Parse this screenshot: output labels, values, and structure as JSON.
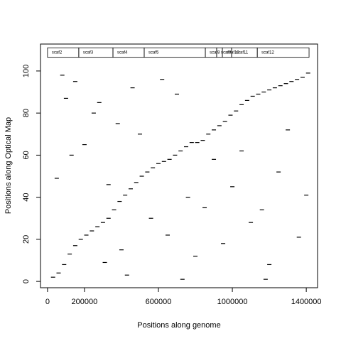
{
  "chart_data": {
    "type": "scatter",
    "x_label": "Positions along genome",
    "y_label": "Positions along Optical Map",
    "xlim": [
      -38000,
      1461000
    ],
    "ylim": [
      -3,
      112.8
    ],
    "xticks": [
      0,
      200000,
      600000,
      1000000,
      1400000
    ],
    "yticks": [
      0,
      20,
      40,
      60,
      80,
      100
    ],
    "color": "#000000",
    "scaffolds": [
      {
        "name": "scaf2",
        "start": 0,
        "end": 169000
      },
      {
        "name": "scaf3",
        "start": 169000,
        "end": 354000
      },
      {
        "name": "scaf4",
        "start": 354000,
        "end": 523000
      },
      {
        "name": "scaf5",
        "start": 523000,
        "end": 854000
      },
      {
        "name": "scaf8",
        "start": 854000,
        "end": 915000
      },
      {
        "name": "scaf9",
        "start": 915000,
        "end": 946000
      },
      {
        "name": "scaf10",
        "start": 946000,
        "end": 996000
      },
      {
        "name": "scaf11",
        "start": 996000,
        "end": 1135000
      },
      {
        "name": "scaf12",
        "start": 1135000,
        "end": 1415000
      }
    ],
    "x": [
      30000,
      60000,
      90000,
      120000,
      150000,
      180000,
      210000,
      240000,
      270000,
      300000,
      330000,
      360000,
      390000,
      420000,
      450000,
      480000,
      510000,
      540000,
      570000,
      600000,
      630000,
      660000,
      690000,
      720000,
      750000,
      780000,
      810000,
      840000,
      870000,
      900000,
      930000,
      960000,
      990000,
      1020000,
      1050000,
      1080000,
      1110000,
      1140000,
      1170000,
      1200000,
      1230000,
      1260000,
      1290000,
      1320000,
      1350000,
      1380000,
      1410000,
      80000,
      100000,
      150000,
      50000,
      130000,
      200000,
      250000,
      280000,
      310000,
      330000,
      380000,
      400000,
      430000,
      460000,
      500000,
      560000,
      620000,
      650000,
      700000,
      760000,
      800000,
      850000,
      900000,
      950000,
      1000000,
      1050000,
      1100000,
      1160000,
      1200000,
      1250000,
      1300000,
      1360000,
      1400000,
      730000,
      1180000
    ],
    "y": [
      2,
      4,
      8,
      13,
      17,
      20,
      22,
      24,
      26,
      28,
      30,
      34,
      38,
      41,
      44,
      47,
      50,
      52,
      54,
      56,
      57,
      58,
      60,
      62,
      64,
      66,
      66,
      67,
      70,
      72,
      74,
      76,
      79,
      81,
      84,
      86,
      88,
      89,
      90,
      91,
      92,
      93,
      94,
      95,
      96,
      97,
      99,
      98,
      87,
      95,
      49,
      60,
      65,
      80,
      85,
      9,
      46,
      75,
      15,
      3,
      92,
      70,
      30,
      96,
      22,
      89,
      40,
      12,
      35,
      58,
      18,
      45,
      62,
      28,
      34,
      8,
      52,
      72,
      21,
      41,
      1,
      1
    ]
  }
}
